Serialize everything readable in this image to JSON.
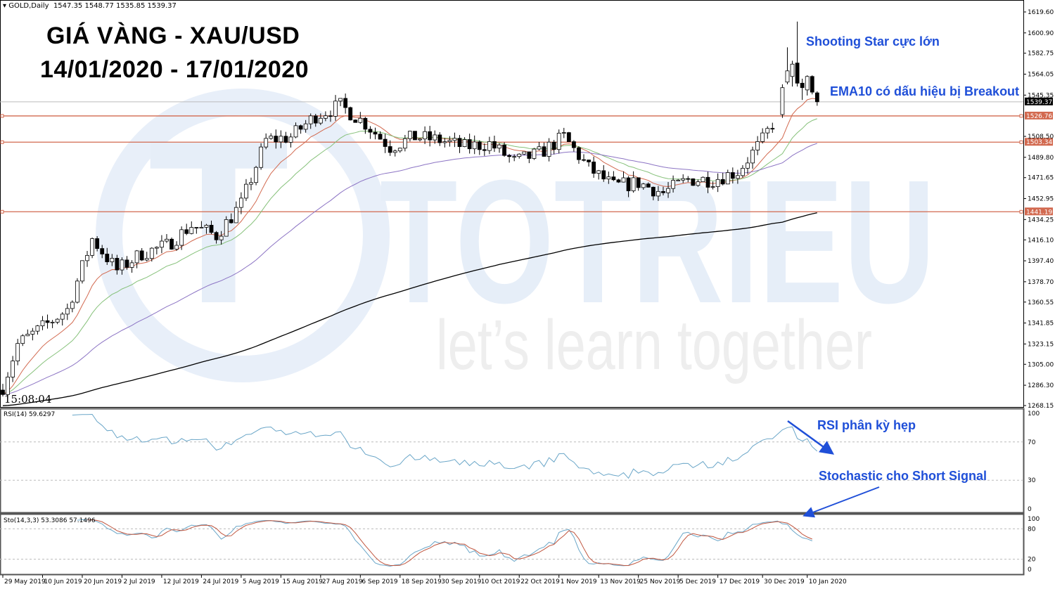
{
  "header": {
    "symbol": "GOLD,Daily",
    "ohlc": "1547.35 1548.77 1535.85 1539.37"
  },
  "title": {
    "line1": "GIÁ VÀNG - XAU/USD",
    "line2": "14/01/2020 - 17/01/2020"
  },
  "annotations": {
    "shooting_star": "Shooting Star cực lớn",
    "ema10": "EMA10 có dấu hiệu bị Breakout",
    "rsi": "RSI phân kỳ hẹp",
    "stoch": "Stochastic cho Short Signal"
  },
  "clock": "15:08:04",
  "watermark": {
    "brand": "TOTRIEU",
    "slogan": "let’s learn together"
  },
  "colors": {
    "annotation": "#1f4fd8",
    "ema10": "#d2694f",
    "ema20": "#86c17a",
    "ema50": "#8c74c4",
    "ema200": "#000000",
    "level_line": "#d2694f",
    "rsi": "#6aa6c8",
    "stoch_main": "#6aa6c8",
    "stoch_signal": "#c0563f",
    "watermark_blue": "#e6eef8",
    "watermark_grey": "#eeeeee"
  },
  "chart_data": {
    "type": "candlestick",
    "ylim": [
      1268.15,
      1619.6
    ],
    "price_ticks": [
      "1619.60",
      "1600.90",
      "1582.75",
      "1564.05",
      "1545.35",
      "1508.50",
      "1489.80",
      "1471.65",
      "1452.95",
      "1434.25",
      "1416.10",
      "1397.40",
      "1378.70",
      "1360.55",
      "1341.85",
      "1323.15",
      "1305.00",
      "1286.30",
      "1268.15"
    ],
    "close_waypoints": [
      [
        "2019-05-29",
        1285
      ],
      [
        "2019-06-03",
        1323
      ],
      [
        "2019-06-10",
        1338
      ],
      [
        "2019-06-17",
        1354
      ],
      [
        "2019-06-24",
        1417
      ],
      [
        "2019-07-01",
        1389
      ],
      [
        "2019-07-08",
        1404
      ],
      [
        "2019-07-15",
        1411
      ],
      [
        "2019-07-22",
        1429
      ],
      [
        "2019-07-29",
        1420
      ],
      [
        "2019-08-05",
        1448
      ],
      [
        "2019-08-12",
        1505
      ],
      [
        "2019-08-19",
        1508
      ],
      [
        "2019-08-26",
        1527
      ],
      [
        "2019-09-02",
        1536
      ],
      [
        "2019-09-09",
        1520
      ],
      [
        "2019-09-16",
        1499
      ],
      [
        "2019-09-23",
        1508
      ],
      [
        "2019-09-30",
        1505
      ],
      [
        "2019-10-07",
        1499
      ],
      [
        "2019-10-14",
        1502
      ],
      [
        "2019-10-21",
        1486
      ],
      [
        "2019-10-28",
        1493
      ],
      [
        "2019-11-04",
        1508
      ],
      [
        "2019-11-11",
        1480
      ],
      [
        "2019-11-18",
        1464
      ],
      [
        "2019-11-25",
        1467
      ],
      [
        "2019-12-02",
        1458
      ],
      [
        "2019-12-09",
        1470
      ],
      [
        "2019-12-16",
        1470
      ],
      [
        "2019-12-23",
        1477
      ],
      [
        "2019-12-30",
        1505
      ],
      [
        "2020-01-02",
        1528
      ]
    ],
    "last_bars": [
      {
        "date": "2020-01-03",
        "o": 1528,
        "h": 1555,
        "l": 1525,
        "c": 1552
      },
      {
        "date": "2020-01-06",
        "o": 1557,
        "h": 1588,
        "l": 1555,
        "c": 1567
      },
      {
        "date": "2020-01-07",
        "o": 1562,
        "h": 1576,
        "l": 1553,
        "c": 1573
      },
      {
        "date": "2020-01-08",
        "o": 1574,
        "h": 1611,
        "l": 1553,
        "c": 1556
      },
      {
        "date": "2020-01-09",
        "o": 1556,
        "h": 1560,
        "l": 1541,
        "c": 1552
      },
      {
        "date": "2020-01-10",
        "o": 1550,
        "h": 1563,
        "l": 1545,
        "c": 1562
      },
      {
        "date": "2020-01-13",
        "o": 1562,
        "h": 1563,
        "l": 1546,
        "c": 1548
      },
      {
        "date": "2020-01-14",
        "o": 1547.35,
        "h": 1548.77,
        "l": 1535.85,
        "c": 1539.37
      }
    ],
    "ema_periods": [
      10,
      20,
      50,
      200
    ],
    "levels": [
      "1526.76",
      "1503.34",
      "1441.19"
    ],
    "current_price": "1539.37",
    "rsi": {
      "label": "RSI(14) 59.6297",
      "period": 14,
      "levels": [
        "100",
        "70",
        "30",
        "0"
      ]
    },
    "stochastic": {
      "label": "Sto(14,3,3) 53.3086 57.1496",
      "k": 14,
      "d": 3,
      "slowing": 3,
      "levels": [
        "100",
        "80",
        "20",
        "0"
      ]
    },
    "x_labels": [
      [
        "2019-05-29",
        "29 May 2019"
      ],
      [
        "2019-06-10",
        "10 Jun 2019"
      ],
      [
        "2019-06-20",
        "20 Jun 2019"
      ],
      [
        "2019-07-02",
        "2 Jul 2019"
      ],
      [
        "2019-07-12",
        "12 Jul 2019"
      ],
      [
        "2019-07-24",
        "24 Jul 2019"
      ],
      [
        "2019-08-05",
        "5 Aug 2019"
      ],
      [
        "2019-08-15",
        "15 Aug 2019"
      ],
      [
        "2019-08-27",
        "27 Aug 2019"
      ],
      [
        "2019-09-06",
        "6 Sep 2019"
      ],
      [
        "2019-09-18",
        "18 Sep 2019"
      ],
      [
        "2019-09-30",
        "30 Sep 2019"
      ],
      [
        "2019-10-10",
        "10 Oct 2019"
      ],
      [
        "2019-10-22",
        "22 Oct 2019"
      ],
      [
        "2019-11-01",
        "1 Nov 2019"
      ],
      [
        "2019-11-13",
        "13 Nov 2019"
      ],
      [
        "2019-11-25",
        "25 Nov 2019"
      ],
      [
        "2019-12-05",
        "5 Dec 2019"
      ],
      [
        "2019-12-17",
        "17 Dec 2019"
      ],
      [
        "2019-12-30",
        "30 Dec 2019"
      ],
      [
        "2020-01-10",
        "10 Jan 2020"
      ]
    ]
  }
}
